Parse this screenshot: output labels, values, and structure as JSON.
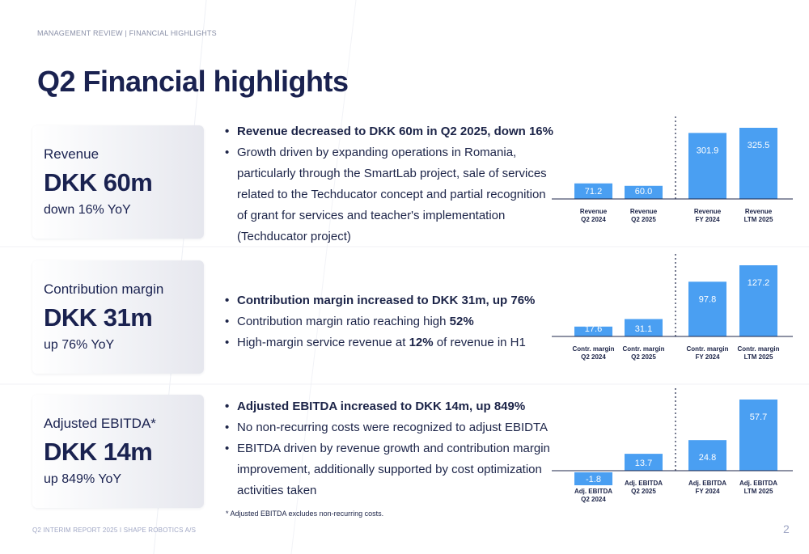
{
  "header": {
    "breadcrumb": "MANAGEMENT REVIEW | FINANCIAL HIGHLIGHTS",
    "title": "Q2 Financial highlights"
  },
  "kpis": [
    {
      "label": "Revenue",
      "value": "DKK 60m",
      "change": "down 16% YoY"
    },
    {
      "label": "Contribution margin",
      "value": "DKK 31m",
      "change": "up 76% YoY"
    },
    {
      "label": "Adjusted EBITDA*",
      "value": "DKK 14m",
      "change": "up 849% YoY"
    }
  ],
  "bullets": {
    "revenue": [
      {
        "text": "Revenue decreased to DKK 60m in Q2 2025, down 16%"
      },
      {
        "text": "Growth driven by expanding operations in Romania, particularly through the SmartLab project, sale of services related to the Techducator concept and partial recognition of grant for services and teacher's implementation (Techducator project)"
      }
    ],
    "margin": [
      {
        "text": "Contribution margin increased to DKK 31m, up 76%"
      },
      {
        "pre": "Contribution margin ratio reaching high ",
        "bold": "52%",
        "post": ""
      },
      {
        "pre": "High-margin service revenue at ",
        "bold": "12%",
        "post": " of revenue in H1"
      }
    ],
    "ebitda": [
      {
        "text": "Adjusted EBITDA increased to DKK 14m, up 849%"
      },
      {
        "text": "No non-recurring costs were recognized to adjust EBIDTA"
      },
      {
        "text": "EBITDA driven by revenue growth and contribution margin improvement, additionally supported by cost optimization activities taken"
      }
    ]
  },
  "footnote": "* Adjusted EBITDA excludes non-recurring costs.",
  "footer": {
    "left": "Q2 INTERIM REPORT 2025 I SHAPE ROBOTICS A/S",
    "page": "2"
  },
  "colors": {
    "bar": "#4a9ff2",
    "title": "#1a2250",
    "footer": "#9fa6c4"
  },
  "chart_data": [
    {
      "type": "bar",
      "categories": [
        [
          "Revenue",
          "Q2 2024"
        ],
        [
          "Revenue",
          "Q2 2025"
        ],
        [
          "Revenue",
          "FY 2024"
        ],
        [
          "Revenue",
          "LTM 2025"
        ]
      ],
      "values": [
        71.2,
        60.0,
        301.9,
        325.5
      ],
      "value_labels": [
        "71.2",
        "60.0",
        "301.9",
        "325.5"
      ],
      "divider_after_index": 1,
      "title": "",
      "xlabel": "",
      "ylabel": "",
      "grid": false
    },
    {
      "type": "bar",
      "categories": [
        [
          "Contr. margin",
          "Q2 2024"
        ],
        [
          "Contr. margin",
          "Q2 2025"
        ],
        [
          "Contr. margin",
          "FY 2024"
        ],
        [
          "Contr. margin",
          "LTM 2025"
        ]
      ],
      "values": [
        17.6,
        31.1,
        97.8,
        127.2
      ],
      "value_labels": [
        "17.6",
        "31.1",
        "97.8",
        "127.2"
      ],
      "divider_after_index": 1,
      "title": "",
      "xlabel": "",
      "ylabel": "",
      "grid": false
    },
    {
      "type": "bar",
      "categories": [
        [
          "Adj. EBITDA",
          "Q2 2024"
        ],
        [
          "Adj. EBITDA",
          "Q2 2025"
        ],
        [
          "Adj. EBITDA",
          "FY 2024"
        ],
        [
          "Adj. EBITDA",
          "LTM 2025"
        ]
      ],
      "values": [
        -1.8,
        13.7,
        24.8,
        57.7
      ],
      "value_labels": [
        "-1.8",
        "13.7",
        "24.8",
        "57.7"
      ],
      "divider_after_index": 1,
      "title": "",
      "xlabel": "",
      "ylabel": "",
      "grid": false
    }
  ]
}
